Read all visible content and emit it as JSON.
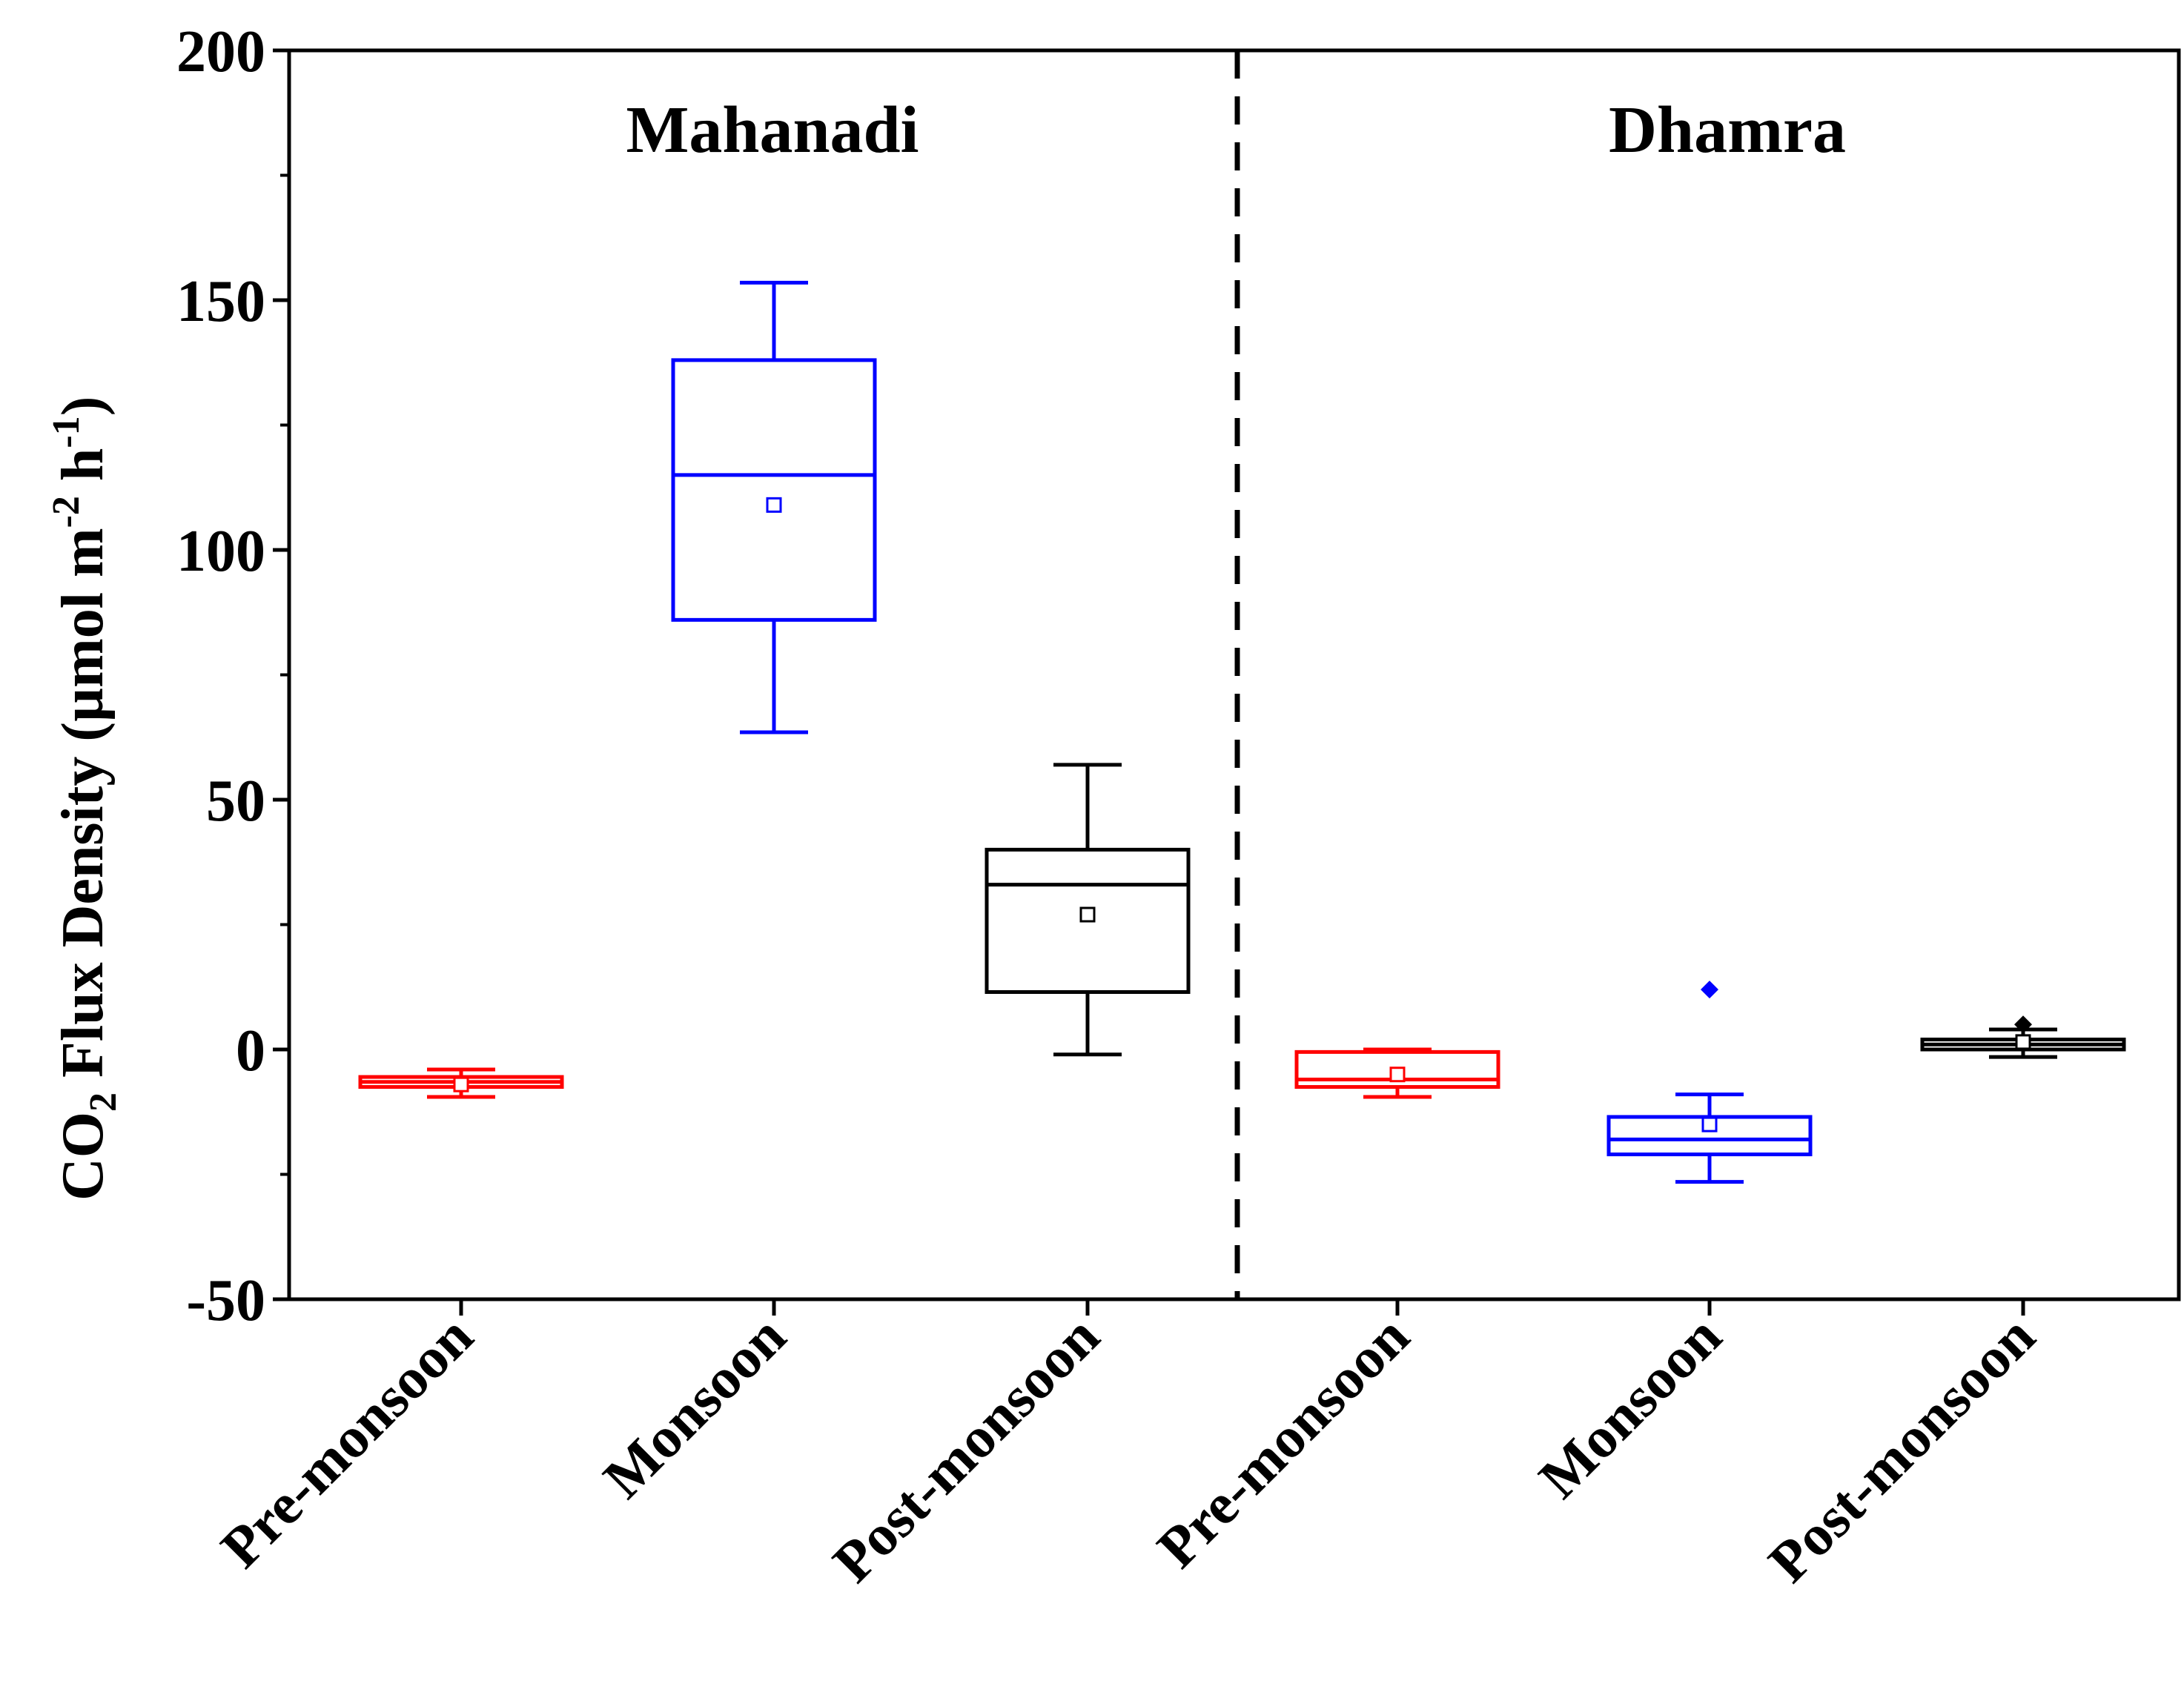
{
  "chart_data": {
    "type": "box",
    "title": "",
    "ylabel": {
      "prefix": "CO",
      "subscript": "2",
      "middle": " Flux Density (µmol m",
      "sup1": "-2",
      "middle2": " h",
      "sup2": "-1",
      "suffix": ")"
    },
    "ylim": [
      -50,
      200
    ],
    "yticks": [
      -50,
      0,
      50,
      100,
      150,
      200
    ],
    "ytick_labels": [
      "-50",
      "0",
      "50",
      "100",
      "150",
      "200"
    ],
    "divider": "dashed vertical line between the two rivers",
    "groups": [
      {
        "name": "Mahanadi",
        "boxes": [
          {
            "category": "Pre-monsoon",
            "color": "#ff0000",
            "whisker_low": -9.5,
            "q1": -7.5,
            "median": -6.5,
            "q3": -5.5,
            "whisker_high": -4,
            "mean": -7,
            "outliers": []
          },
          {
            "category": "Monsoon",
            "color": "#0000ff",
            "whisker_low": 63.5,
            "q1": 86,
            "median": 115,
            "q3": 138,
            "whisker_high": 153.5,
            "mean": 109,
            "outliers": []
          },
          {
            "category": "Post-monsoon",
            "color": "#000000",
            "whisker_low": -1,
            "q1": 11.5,
            "median": 33,
            "q3": 40,
            "whisker_high": 57,
            "mean": 27,
            "outliers": []
          }
        ]
      },
      {
        "name": "Dhamra",
        "boxes": [
          {
            "category": "Pre-monsoon",
            "color": "#ff0000",
            "whisker_low": -9.5,
            "q1": -7.5,
            "median": -6,
            "q3": -0.5,
            "whisker_high": 0,
            "mean": -5,
            "outliers": []
          },
          {
            "category": "Monsoon",
            "color": "#0000ff",
            "whisker_low": -26.5,
            "q1": -21,
            "median": -18,
            "q3": -13.5,
            "whisker_high": -9,
            "mean": -15,
            "outliers": [
              12
            ]
          },
          {
            "category": "Post-monsoon",
            "color": "#000000",
            "whisker_low": -1.5,
            "q1": 0,
            "median": 1,
            "q3": 2,
            "whisker_high": 4,
            "mean": 1.5,
            "outliers": [
              5
            ]
          }
        ]
      }
    ]
  }
}
